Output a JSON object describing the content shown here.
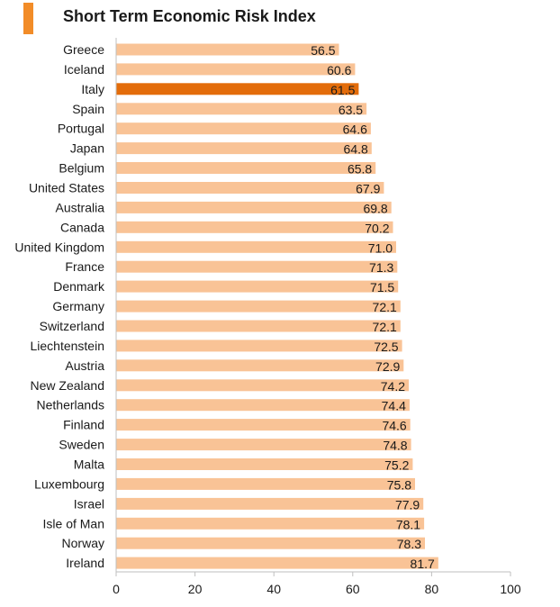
{
  "colors": {
    "title_marker": "#F28C28",
    "bar": "#F9C396",
    "highlight_bar": "#E36C0A",
    "axis": "#bfbfbf",
    "text": "#1a1a1a"
  },
  "chart_data": {
    "type": "bar",
    "orientation": "horizontal",
    "title": "Short Term Economic Risk Index",
    "xlabel": "",
    "ylabel": "",
    "xlim": [
      0,
      100
    ],
    "xticks": [
      0,
      20,
      40,
      60,
      80,
      100
    ],
    "grid": false,
    "highlight": "Italy",
    "categories": [
      "Greece",
      "Iceland",
      "Italy",
      "Spain",
      "Portugal",
      "Japan",
      "Belgium",
      "United States",
      "Australia",
      "Canada",
      "United Kingdom",
      "France",
      "Denmark",
      "Germany",
      "Switzerland",
      "Liechtenstein",
      "Austria",
      "New Zealand",
      "Netherlands",
      "Finland",
      "Sweden",
      "Malta",
      "Luxembourg",
      "Israel",
      "Isle of Man",
      "Norway",
      "Ireland"
    ],
    "values": [
      56.5,
      60.6,
      61.5,
      63.5,
      64.6,
      64.8,
      65.8,
      67.9,
      69.8,
      70.2,
      71.0,
      71.3,
      71.5,
      72.1,
      72.1,
      72.5,
      72.9,
      74.2,
      74.4,
      74.6,
      74.8,
      75.2,
      75.8,
      77.9,
      78.1,
      78.3,
      81.7
    ],
    "value_labels": [
      "56.5",
      "60.6",
      "61.5",
      "63.5",
      "64.6",
      "64.8",
      "65.8",
      "67.9",
      "69.8",
      "70.2",
      "71.0",
      "71.3",
      "71.5",
      "72.1",
      "72.1",
      "72.5",
      "72.9",
      "74.2",
      "74.4",
      "74.6",
      "74.8",
      "75.2",
      "75.8",
      "77.9",
      "78.1",
      "78.3",
      "81.7"
    ]
  }
}
